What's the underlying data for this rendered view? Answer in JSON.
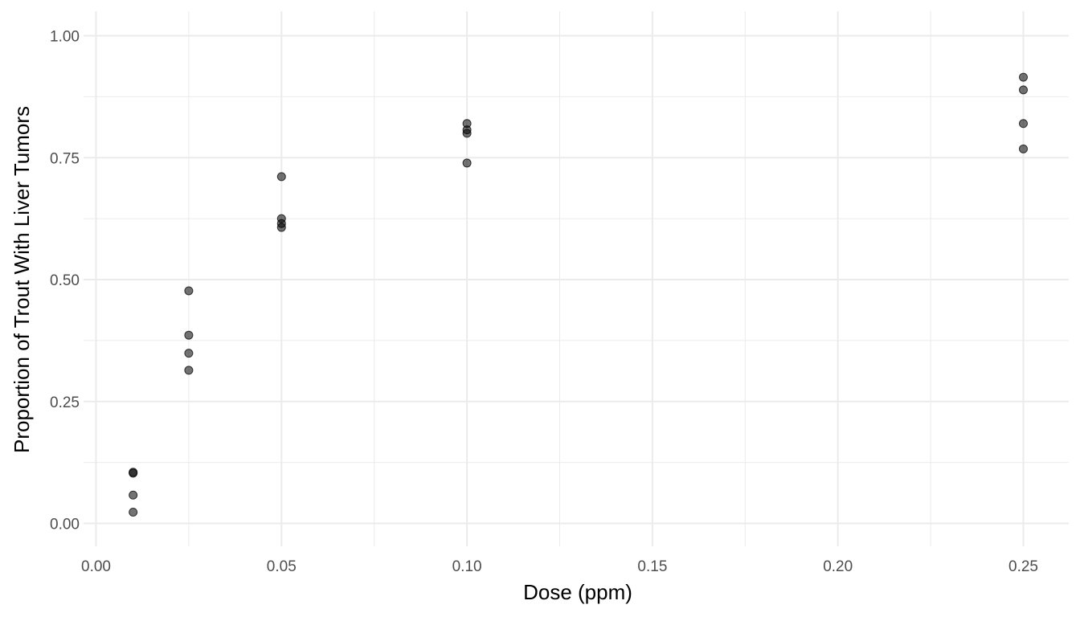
{
  "chart_data": {
    "type": "scatter",
    "xlabel": "Dose (ppm)",
    "ylabel": "Proportion of Trout With Liver Tumors",
    "xlim": [
      0.0,
      0.26
    ],
    "ylim": [
      -0.05,
      1.05
    ],
    "x_ticks": [
      0.0,
      0.05,
      0.1,
      0.15,
      0.2,
      0.25
    ],
    "x_tick_labels": [
      "0.00",
      "0.05",
      "0.10",
      "0.15",
      "0.20",
      "0.25"
    ],
    "y_ticks": [
      0.0,
      0.25,
      0.5,
      0.75,
      1.0
    ],
    "y_tick_labels": [
      "0.00",
      "0.25",
      "0.50",
      "0.75",
      "1.00"
    ],
    "grid": true,
    "point_color": "#000000",
    "points": [
      {
        "x": 0.01,
        "y": 0.105
      },
      {
        "x": 0.01,
        "y": 0.103
      },
      {
        "x": 0.01,
        "y": 0.058
      },
      {
        "x": 0.01,
        "y": 0.023
      },
      {
        "x": 0.025,
        "y": 0.477
      },
      {
        "x": 0.025,
        "y": 0.386
      },
      {
        "x": 0.025,
        "y": 0.349
      },
      {
        "x": 0.025,
        "y": 0.314
      },
      {
        "x": 0.05,
        "y": 0.711
      },
      {
        "x": 0.05,
        "y": 0.625
      },
      {
        "x": 0.05,
        "y": 0.615
      },
      {
        "x": 0.05,
        "y": 0.607
      },
      {
        "x": 0.1,
        "y": 0.82
      },
      {
        "x": 0.1,
        "y": 0.807
      },
      {
        "x": 0.1,
        "y": 0.8
      },
      {
        "x": 0.1,
        "y": 0.739
      },
      {
        "x": 0.25,
        "y": 0.915
      },
      {
        "x": 0.25,
        "y": 0.889
      },
      {
        "x": 0.25,
        "y": 0.82
      },
      {
        "x": 0.25,
        "y": 0.768
      }
    ]
  }
}
